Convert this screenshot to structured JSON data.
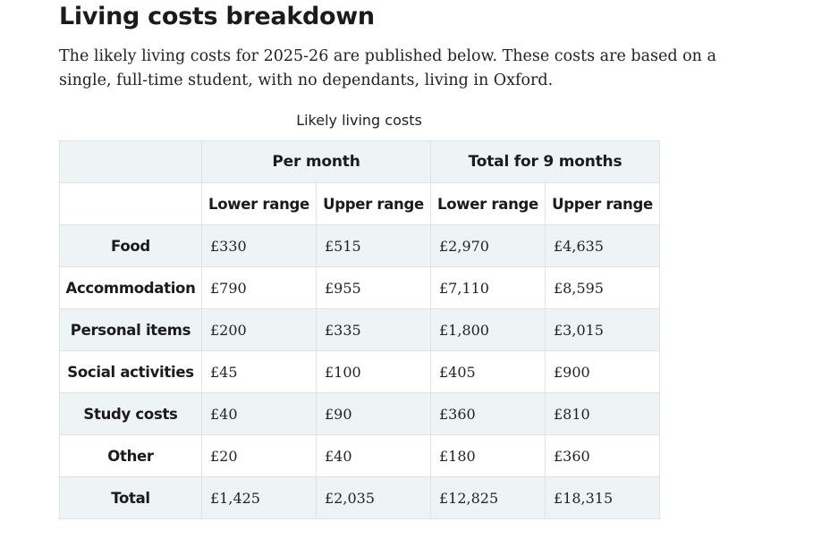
{
  "heading": "Living costs breakdown",
  "intro": "The likely living costs for 2025-26 are published below. These costs are based on a single, full-time student, with no dependants, living in Oxford.",
  "table": {
    "caption": "Likely living costs",
    "group_headers": [
      "Per month",
      "Total for 9 months"
    ],
    "sub_headers": [
      "Lower range",
      "Upper range",
      "Lower range",
      "Upper range"
    ],
    "rows": [
      {
        "label": "Food",
        "values": [
          "£330",
          "£515",
          "£2,970",
          "£4,635"
        ]
      },
      {
        "label": "Accommodation",
        "values": [
          "£790",
          "£955",
          "£7,110",
          "£8,595"
        ]
      },
      {
        "label": "Personal items",
        "values": [
          "£200",
          "£335",
          "£1,800",
          "£3,015"
        ]
      },
      {
        "label": "Social activities",
        "values": [
          "£45",
          "£100",
          "£405",
          "£900"
        ]
      },
      {
        "label": "Study costs",
        "values": [
          "£40",
          "£90",
          "£360",
          "£810"
        ]
      },
      {
        "label": "Other",
        "values": [
          "£20",
          "£40",
          "£180",
          "£360"
        ]
      },
      {
        "label": "Total",
        "values": [
          "£1,425",
          "£2,035",
          "£12,825",
          "£18,315"
        ]
      }
    ]
  },
  "colors": {
    "shaded_row": "#eef3f6",
    "border": "#dfe3e6",
    "text": "#222222"
  }
}
